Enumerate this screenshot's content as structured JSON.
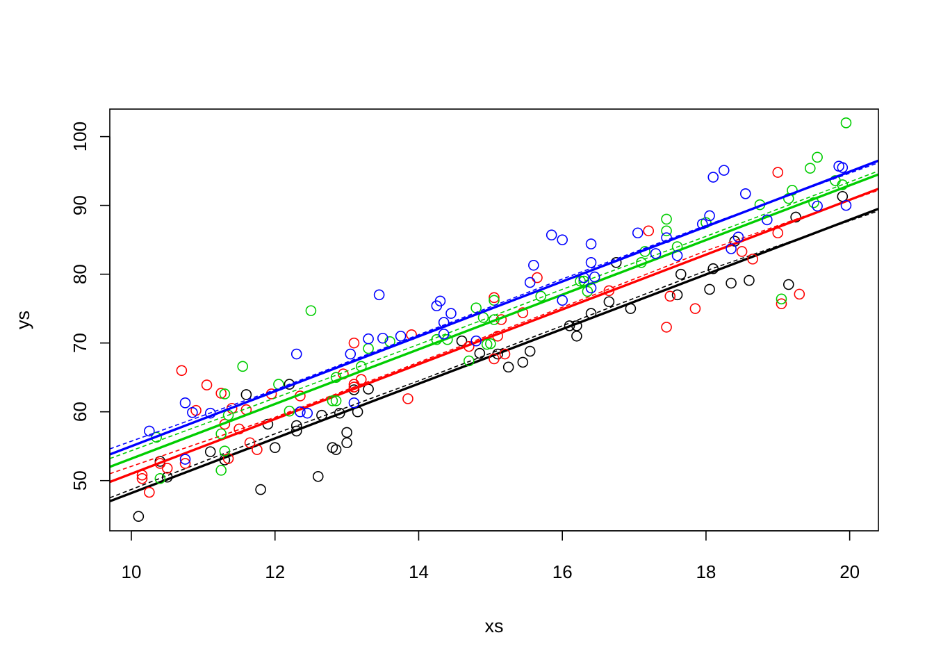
{
  "chart_data": {
    "type": "scatter",
    "title": "",
    "xlabel": "xs",
    "ylabel": "ys",
    "xlim": [
      9.7,
      20.4
    ],
    "ylim": [
      42.7,
      104.0
    ],
    "x_ticks": [
      10,
      12,
      14,
      16,
      18,
      20
    ],
    "y_ticks": [
      50,
      60,
      70,
      80,
      90,
      100
    ],
    "x_tick_labels": [
      "10",
      "12",
      "14",
      "16",
      "18",
      "20"
    ],
    "y_tick_labels": [
      "50",
      "60",
      "70",
      "80",
      "90",
      "100"
    ],
    "grid": false,
    "legend": "none",
    "series": [
      {
        "color": "#000000",
        "fit_line": {
          "x": [
            9.7,
            20.4
          ],
          "y": [
            47.0,
            89.5
          ]
        },
        "smooth_line": {
          "x": [
            9.7,
            12.0,
            14.0,
            16.0,
            18.0,
            20.4
          ],
          "y": [
            47.5,
            56.8,
            64.5,
            72.5,
            80.5,
            89.2
          ]
        },
        "points": [
          [
            10.1,
            44.8
          ],
          [
            10.4,
            52.8
          ],
          [
            10.5,
            50.5
          ],
          [
            11.1,
            54.2
          ],
          [
            11.3,
            53.0
          ],
          [
            11.6,
            62.5
          ],
          [
            11.8,
            48.7
          ],
          [
            11.9,
            58.2
          ],
          [
            12.0,
            54.8
          ],
          [
            12.2,
            64.0
          ],
          [
            12.3,
            57.2
          ],
          [
            12.3,
            58.0
          ],
          [
            12.6,
            50.6
          ],
          [
            12.65,
            59.5
          ],
          [
            12.8,
            54.8
          ],
          [
            12.85,
            54.5
          ],
          [
            12.9,
            59.8
          ],
          [
            13.0,
            55.5
          ],
          [
            13.0,
            57.0
          ],
          [
            13.1,
            63.2
          ],
          [
            13.15,
            60.0
          ],
          [
            13.3,
            63.3
          ],
          [
            14.6,
            70.3
          ],
          [
            14.85,
            68.5
          ],
          [
            15.1,
            68.4
          ],
          [
            15.25,
            66.5
          ],
          [
            15.45,
            67.2
          ],
          [
            15.55,
            68.8
          ],
          [
            16.1,
            72.5
          ],
          [
            16.2,
            71.0
          ],
          [
            16.2,
            72.5
          ],
          [
            16.4,
            74.3
          ],
          [
            16.65,
            76.0
          ],
          [
            16.75,
            81.7
          ],
          [
            16.95,
            75.0
          ],
          [
            17.6,
            77.0
          ],
          [
            17.65,
            80.0
          ],
          [
            18.1,
            80.8
          ],
          [
            18.05,
            77.8
          ],
          [
            18.35,
            78.7
          ],
          [
            18.4,
            84.8
          ],
          [
            18.6,
            79.1
          ],
          [
            19.15,
            78.5
          ],
          [
            19.25,
            88.3
          ],
          [
            19.9,
            91.3
          ]
        ]
      },
      {
        "color": "#ff0000",
        "fit_line": {
          "x": [
            9.7,
            20.4
          ],
          "y": [
            49.8,
            92.4
          ]
        },
        "smooth_line": {
          "x": [
            9.7,
            12.0,
            14.0,
            16.0,
            18.0,
            20.4
          ],
          "y": [
            51.0,
            59.2,
            67.2,
            75.2,
            83.4,
            92.2
          ]
        },
        "points": [
          [
            10.15,
            50.8
          ],
          [
            10.15,
            50.3
          ],
          [
            10.25,
            48.3
          ],
          [
            10.4,
            52.5
          ],
          [
            10.5,
            51.8
          ],
          [
            10.7,
            66.0
          ],
          [
            10.75,
            52.5
          ],
          [
            10.9,
            60.2
          ],
          [
            11.05,
            63.9
          ],
          [
            11.25,
            62.7
          ],
          [
            11.3,
            58.2
          ],
          [
            11.35,
            53.2
          ],
          [
            11.4,
            60.5
          ],
          [
            11.5,
            57.5
          ],
          [
            11.6,
            60.3
          ],
          [
            11.65,
            55.5
          ],
          [
            11.75,
            54.5
          ],
          [
            11.95,
            62.6
          ],
          [
            12.35,
            62.3
          ],
          [
            12.95,
            65.5
          ],
          [
            13.1,
            70.0
          ],
          [
            13.1,
            63.6
          ],
          [
            13.1,
            64.0
          ],
          [
            13.2,
            64.7
          ],
          [
            13.85,
            61.9
          ],
          [
            13.9,
            71.2
          ],
          [
            14.7,
            69.5
          ],
          [
            15.05,
            76.6
          ],
          [
            15.05,
            67.7
          ],
          [
            15.1,
            71.0
          ],
          [
            15.15,
            73.4
          ],
          [
            15.2,
            68.4
          ],
          [
            15.45,
            74.4
          ],
          [
            15.65,
            79.5
          ],
          [
            16.65,
            77.6
          ],
          [
            17.2,
            86.3
          ],
          [
            17.45,
            72.3
          ],
          [
            17.5,
            76.8
          ],
          [
            17.85,
            75.0
          ],
          [
            18.5,
            83.3
          ],
          [
            18.65,
            82.2
          ],
          [
            19.0,
            94.8
          ],
          [
            19.0,
            86.0
          ],
          [
            19.05,
            75.7
          ],
          [
            19.3,
            77.1
          ]
        ]
      },
      {
        "color": "#00cd00",
        "fit_line": {
          "x": [
            9.7,
            20.4
          ],
          "y": [
            52.0,
            94.5
          ]
        },
        "smooth_line": {
          "x": [
            9.7,
            12.0,
            14.0,
            16.0,
            18.0,
            20.4
          ],
          "y": [
            53.2,
            62.0,
            69.8,
            77.8,
            85.5,
            95.0
          ]
        },
        "points": [
          [
            10.35,
            56.3
          ],
          [
            10.4,
            50.3
          ],
          [
            11.25,
            51.5
          ],
          [
            11.25,
            56.8
          ],
          [
            11.3,
            62.6
          ],
          [
            11.3,
            54.3
          ],
          [
            11.35,
            59.5
          ],
          [
            11.55,
            66.6
          ],
          [
            12.05,
            64.0
          ],
          [
            12.2,
            60.1
          ],
          [
            12.5,
            74.7
          ],
          [
            12.8,
            61.6
          ],
          [
            12.85,
            65.0
          ],
          [
            12.85,
            61.6
          ],
          [
            13.2,
            66.6
          ],
          [
            13.3,
            69.2
          ],
          [
            13.6,
            70.2
          ],
          [
            14.25,
            70.5
          ],
          [
            14.4,
            70.5
          ],
          [
            14.7,
            67.4
          ],
          [
            14.8,
            75.1
          ],
          [
            14.9,
            73.7
          ],
          [
            14.95,
            69.8
          ],
          [
            15.0,
            69.9
          ],
          [
            15.05,
            73.4
          ],
          [
            15.05,
            76.2
          ],
          [
            15.7,
            76.8
          ],
          [
            16.25,
            79.0
          ],
          [
            16.3,
            79.0
          ],
          [
            16.35,
            77.5
          ],
          [
            17.15,
            83.3
          ],
          [
            17.1,
            81.7
          ],
          [
            17.45,
            88.0
          ],
          [
            17.45,
            86.3
          ],
          [
            17.6,
            84.0
          ],
          [
            18.0,
            87.5
          ],
          [
            18.75,
            90.1
          ],
          [
            19.05,
            76.4
          ],
          [
            19.15,
            91.0
          ],
          [
            19.2,
            92.2
          ],
          [
            19.45,
            95.4
          ],
          [
            19.5,
            90.4
          ],
          [
            19.55,
            97.0
          ],
          [
            19.8,
            93.6
          ],
          [
            19.9,
            93.0
          ],
          [
            19.95,
            102.0
          ]
        ]
      },
      {
        "color": "#0000ff",
        "fit_line": {
          "x": [
            9.7,
            20.4
          ],
          "y": [
            53.8,
            96.5
          ]
        },
        "smooth_line": {
          "x": [
            9.7,
            12.0,
            14.0,
            16.0,
            18.0,
            20.4
          ],
          "y": [
            54.6,
            63.2,
            71.2,
            79.3,
            87.1,
            96.2
          ]
        },
        "points": [
          [
            10.25,
            57.2
          ],
          [
            10.75,
            53.1
          ],
          [
            10.75,
            61.3
          ],
          [
            10.85,
            59.9
          ],
          [
            11.1,
            59.8
          ],
          [
            12.3,
            68.4
          ],
          [
            12.35,
            60.0
          ],
          [
            12.45,
            59.8
          ],
          [
            13.05,
            68.4
          ],
          [
            13.1,
            61.3
          ],
          [
            13.3,
            70.6
          ],
          [
            13.45,
            77.0
          ],
          [
            13.5,
            70.7
          ],
          [
            13.75,
            71.0
          ],
          [
            14.25,
            75.4
          ],
          [
            14.3,
            76.1
          ],
          [
            14.35,
            73.0
          ],
          [
            14.35,
            71.3
          ],
          [
            14.45,
            74.3
          ],
          [
            14.8,
            70.3
          ],
          [
            15.55,
            78.8
          ],
          [
            15.6,
            81.3
          ],
          [
            15.85,
            85.7
          ],
          [
            16.0,
            85.0
          ],
          [
            16.0,
            76.2
          ],
          [
            16.3,
            79.5
          ],
          [
            16.4,
            84.4
          ],
          [
            16.45,
            79.6
          ],
          [
            16.4,
            81.7
          ],
          [
            16.4,
            78.0
          ],
          [
            17.05,
            86.0
          ],
          [
            17.3,
            83.0
          ],
          [
            17.45,
            85.3
          ],
          [
            17.6,
            82.7
          ],
          [
            17.95,
            87.3
          ],
          [
            18.05,
            88.5
          ],
          [
            18.1,
            94.1
          ],
          [
            18.25,
            95.1
          ],
          [
            18.35,
            83.7
          ],
          [
            18.45,
            85.4
          ],
          [
            18.55,
            91.7
          ],
          [
            18.85,
            87.9
          ],
          [
            19.55,
            89.9
          ],
          [
            19.85,
            95.7
          ],
          [
            19.9,
            95.5
          ],
          [
            19.95,
            90.0
          ]
        ]
      }
    ]
  }
}
